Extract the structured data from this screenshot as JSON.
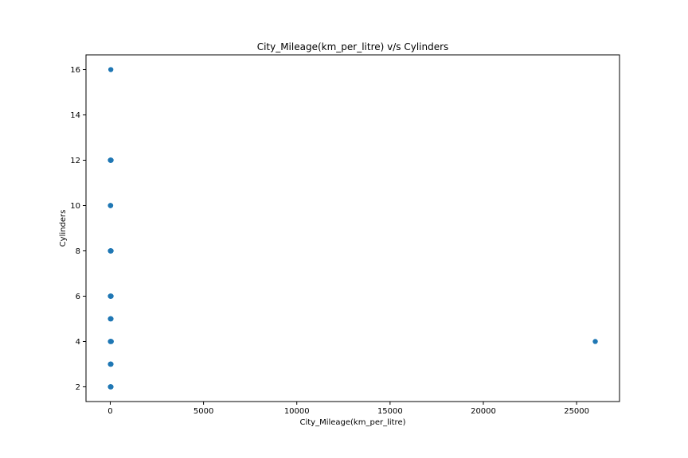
{
  "chart_data": {
    "type": "scatter",
    "title": "City_Mileage(km_per_litre) v/s Cylinders",
    "xlabel": "City_Mileage(km_per_litre)",
    "ylabel": "Cylinders",
    "xlim": [
      -1300,
      27300
    ],
    "ylim": [
      1.35,
      16.65
    ],
    "xticks": [
      0,
      5000,
      10000,
      15000,
      20000,
      25000
    ],
    "xtick_labels": [
      "0",
      "5000",
      "10000",
      "15000",
      "20000",
      "25000"
    ],
    "yticks": [
      2,
      4,
      6,
      8,
      10,
      12,
      14,
      16
    ],
    "ytick_labels": [
      "2",
      "4",
      "6",
      "8",
      "10",
      "12",
      "14",
      "16"
    ],
    "grid": false,
    "marker_color": "#1f77b4",
    "points": [
      {
        "x": 8,
        "y": 2
      },
      {
        "x": 15,
        "y": 2
      },
      {
        "x": 22,
        "y": 2
      },
      {
        "x": 30,
        "y": 2
      },
      {
        "x": 40,
        "y": 2
      },
      {
        "x": 8,
        "y": 3
      },
      {
        "x": 15,
        "y": 3
      },
      {
        "x": 22,
        "y": 3
      },
      {
        "x": 30,
        "y": 3
      },
      {
        "x": 40,
        "y": 3
      },
      {
        "x": 8,
        "y": 4
      },
      {
        "x": 15,
        "y": 4
      },
      {
        "x": 22,
        "y": 4
      },
      {
        "x": 30,
        "y": 4
      },
      {
        "x": 40,
        "y": 4
      },
      {
        "x": 55,
        "y": 4
      },
      {
        "x": 8,
        "y": 5
      },
      {
        "x": 15,
        "y": 5
      },
      {
        "x": 22,
        "y": 5
      },
      {
        "x": 30,
        "y": 5
      },
      {
        "x": 40,
        "y": 5
      },
      {
        "x": 6,
        "y": 6
      },
      {
        "x": 12,
        "y": 6
      },
      {
        "x": 18,
        "y": 6
      },
      {
        "x": 25,
        "y": 6
      },
      {
        "x": 35,
        "y": 6
      },
      {
        "x": 45,
        "y": 6
      },
      {
        "x": 6,
        "y": 8
      },
      {
        "x": 12,
        "y": 8
      },
      {
        "x": 18,
        "y": 8
      },
      {
        "x": 25,
        "y": 8
      },
      {
        "x": 35,
        "y": 8
      },
      {
        "x": 45,
        "y": 8
      },
      {
        "x": 8,
        "y": 10
      },
      {
        "x": 15,
        "y": 10
      },
      {
        "x": 22,
        "y": 10
      },
      {
        "x": 6,
        "y": 12
      },
      {
        "x": 12,
        "y": 12
      },
      {
        "x": 18,
        "y": 12
      },
      {
        "x": 25,
        "y": 12
      },
      {
        "x": 35,
        "y": 12
      },
      {
        "x": 45,
        "y": 12
      },
      {
        "x": 30,
        "y": 16
      },
      {
        "x": 26000,
        "y": 4
      }
    ]
  }
}
